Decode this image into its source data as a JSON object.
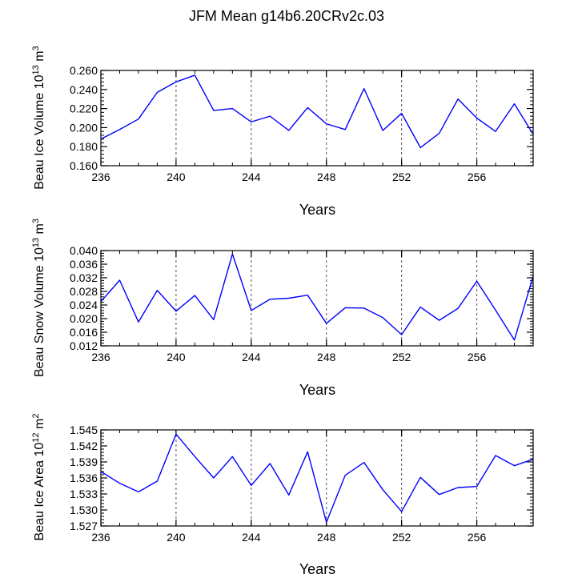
{
  "title": "JFM Mean g14b6.20CRv2c.03",
  "colors": {
    "line": "#0000ff",
    "axis": "#000000",
    "grid": "#555555"
  },
  "chart_data": [
    {
      "type": "line",
      "ylabel_base": "Beau Ice Volume 10",
      "ylabel_exp": "13",
      "ylabel_unit": " m",
      "ylabel_unit_exp": "3",
      "xlabel": "Years",
      "xlim": [
        236,
        259
      ],
      "ylim": [
        0.16,
        0.26
      ],
      "xticks": [
        236,
        240,
        244,
        248,
        252,
        256
      ],
      "xtick_labels": [
        "236",
        "240",
        "244",
        "248",
        "252",
        "256"
      ],
      "yticks": [
        0.16,
        0.18,
        0.2,
        0.22,
        0.24,
        0.26
      ],
      "ytick_labels": [
        "0.160",
        "0.180",
        "0.200",
        "0.220",
        "0.240",
        "0.260"
      ],
      "grid_x": [
        240,
        244,
        248,
        252,
        256
      ],
      "x": [
        236,
        237,
        238,
        239,
        240,
        241,
        242,
        243,
        244,
        245,
        246,
        247,
        248,
        249,
        250,
        251,
        252,
        253,
        254,
        255,
        256,
        257,
        258,
        259
      ],
      "values": [
        0.188,
        0.198,
        0.209,
        0.237,
        0.248,
        0.255,
        0.218,
        0.22,
        0.206,
        0.212,
        0.197,
        0.221,
        0.204,
        0.198,
        0.241,
        0.197,
        0.215,
        0.179,
        0.194,
        0.23,
        0.21,
        0.196,
        0.225,
        0.193
      ]
    },
    {
      "type": "line",
      "ylabel_base": "Beau Snow Volume 10",
      "ylabel_exp": "13",
      "ylabel_unit": " m",
      "ylabel_unit_exp": "3",
      "xlabel": "Years",
      "xlim": [
        236,
        259
      ],
      "ylim": [
        0.012,
        0.04
      ],
      "xticks": [
        236,
        240,
        244,
        248,
        252,
        256
      ],
      "xtick_labels": [
        "236",
        "240",
        "244",
        "248",
        "252",
        "256"
      ],
      "yticks": [
        0.012,
        0.016,
        0.02,
        0.024,
        0.028,
        0.032,
        0.036,
        0.04
      ],
      "ytick_labels": [
        "0.012",
        "0.016",
        "0.020",
        "0.024",
        "0.028",
        "0.032",
        "0.036",
        "0.040"
      ],
      "grid_x": [
        240,
        244,
        248,
        252,
        256
      ],
      "x": [
        236,
        237,
        238,
        239,
        240,
        241,
        242,
        243,
        244,
        245,
        246,
        247,
        248,
        249,
        250,
        251,
        252,
        253,
        254,
        255,
        256,
        257,
        258,
        259
      ],
      "values": [
        0.025,
        0.0313,
        0.019,
        0.0283,
        0.0222,
        0.0268,
        0.0197,
        0.039,
        0.0224,
        0.0257,
        0.026,
        0.0269,
        0.0186,
        0.0232,
        0.0231,
        0.0203,
        0.0153,
        0.0234,
        0.0195,
        0.023,
        0.031,
        0.0225,
        0.0137,
        0.0325
      ]
    },
    {
      "type": "line",
      "ylabel_base": "Beau Ice Area 10",
      "ylabel_exp": "12",
      "ylabel_unit": " m",
      "ylabel_unit_exp": "2",
      "xlabel": "Years",
      "xlim": [
        236,
        259
      ],
      "ylim": [
        1.527,
        1.545
      ],
      "xticks": [
        236,
        240,
        244,
        248,
        252,
        256
      ],
      "xtick_labels": [
        "236",
        "240",
        "244",
        "248",
        "252",
        "256"
      ],
      "yticks": [
        1.527,
        1.53,
        1.533,
        1.536,
        1.539,
        1.542,
        1.545
      ],
      "ytick_labels": [
        "1.527",
        "1.530",
        "1.533",
        "1.536",
        "1.539",
        "1.542",
        "1.545"
      ],
      "grid_x": [
        240,
        244,
        248,
        252,
        256
      ],
      "x": [
        236,
        237,
        238,
        239,
        240,
        241,
        242,
        243,
        244,
        245,
        246,
        247,
        248,
        249,
        250,
        251,
        252,
        253,
        254,
        255,
        256,
        257,
        258,
        259
      ],
      "values": [
        1.5372,
        1.535,
        1.5334,
        1.5354,
        1.5442,
        1.54,
        1.536,
        1.54,
        1.5346,
        1.5387,
        1.5328,
        1.5409,
        1.5277,
        1.5365,
        1.5389,
        1.5338,
        1.5297,
        1.5361,
        1.5329,
        1.5342,
        1.5344,
        1.5402,
        1.5383,
        1.5395
      ]
    }
  ]
}
